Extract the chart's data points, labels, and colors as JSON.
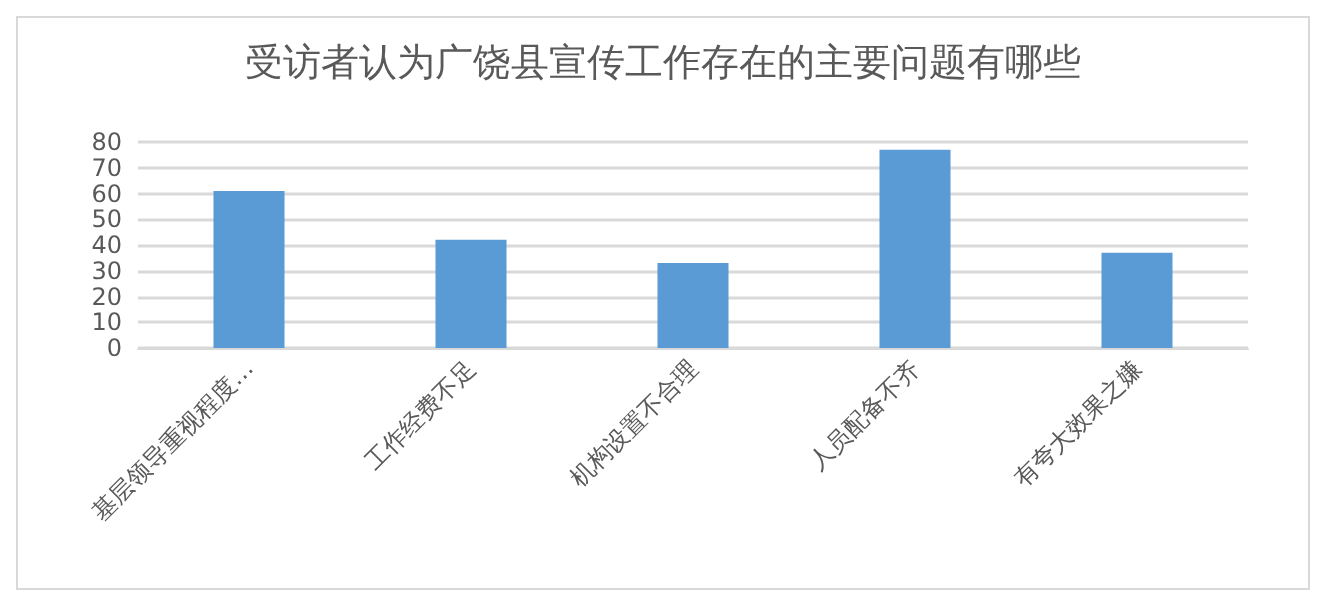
{
  "chart_data": {
    "type": "bar",
    "title": "受访者认为广饶县宣传工作存在的主要问题有哪些",
    "categories": [
      "基层领导重视程度…",
      "工作经费不足",
      "机构设置不合理",
      "人员配备不齐",
      "有夸大效果之嫌"
    ],
    "values": [
      61,
      42,
      33,
      77,
      37
    ],
    "color": "#5b9bd5",
    "ylim": [
      0,
      80
    ],
    "yticks": [
      0,
      10,
      20,
      30,
      40,
      50,
      60,
      70,
      80
    ],
    "grid": "y"
  }
}
